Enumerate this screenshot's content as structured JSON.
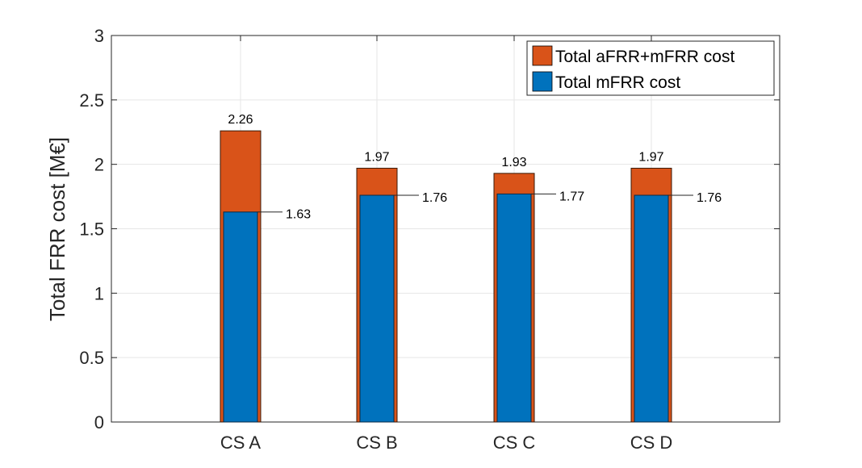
{
  "chart_data": {
    "type": "bar",
    "categories": [
      "CS A",
      "CS B",
      "CS C",
      "CS D"
    ],
    "series": [
      {
        "name": "Total aFRR+mFRR cost",
        "values": [
          2.26,
          1.97,
          1.93,
          1.97
        ],
        "color": "#D95319"
      },
      {
        "name": "Total mFRR cost",
        "values": [
          1.63,
          1.76,
          1.77,
          1.76
        ],
        "color": "#0072BD"
      }
    ],
    "total_labels": [
      "2.26",
      "1.97",
      "1.93",
      "1.97"
    ],
    "mfrr_labels": [
      "1.63",
      "1.76",
      "1.77",
      "1.76"
    ],
    "ylabel": "Total FRR cost [M€]",
    "ylim": [
      0,
      3
    ],
    "yticks": [
      "0",
      "0.5",
      "1",
      "1.5",
      "2",
      "2.5",
      "3"
    ],
    "grid": true,
    "legend_position": "top-right"
  }
}
